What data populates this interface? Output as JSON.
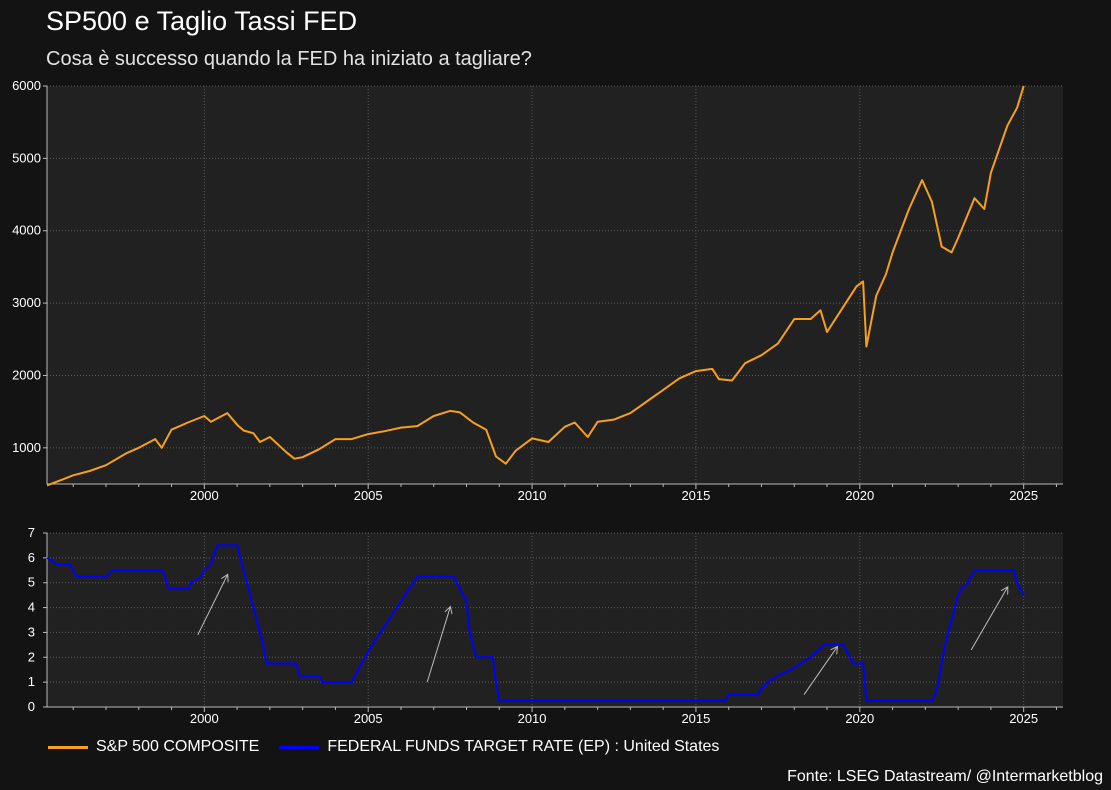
{
  "header": {
    "title": "SP500 e Taglio Tassi FED",
    "subtitle": "Cosa è successo quando la FED ha iniziato a tagliare?"
  },
  "footer": {
    "source": "Fonte: LSEG Datastream/ @Intermarketblog"
  },
  "colors": {
    "background": "#131313",
    "plot_background": "#212121",
    "grid": "#5a5a5a",
    "sp500": "#f7a01e",
    "fed": "#0000ff",
    "arrow": "#bdbdbd"
  },
  "chart_data": [
    {
      "type": "line",
      "x_type": "year",
      "xlim": [
        1995.2,
        2026.2
      ],
      "ylim": [
        500,
        6000
      ],
      "xticks": [
        2000,
        2005,
        2010,
        2015,
        2020,
        2025
      ],
      "yticks": [
        1000,
        2000,
        3000,
        4000,
        5000,
        6000
      ],
      "grid": true,
      "series": [
        {
          "name": "S&P 500 COMPOSITE",
          "color": "#f7a01e",
          "x": [
            1995.2,
            1995.6,
            1996.0,
            1996.5,
            1997.0,
            1997.6,
            1998.0,
            1998.5,
            1998.7,
            1999.0,
            1999.5,
            2000.0,
            2000.2,
            2000.7,
            2001.0,
            2001.2,
            2001.5,
            2001.7,
            2002.0,
            2002.5,
            2002.75,
            2003.0,
            2003.5,
            2004.0,
            2004.5,
            2005.0,
            2005.5,
            2006.0,
            2006.5,
            2007.0,
            2007.5,
            2007.8,
            2008.2,
            2008.6,
            2008.9,
            2009.2,
            2009.5,
            2010.0,
            2010.5,
            2011.0,
            2011.3,
            2011.7,
            2012.0,
            2012.5,
            2013.0,
            2013.5,
            2014.0,
            2014.5,
            2015.0,
            2015.5,
            2015.7,
            2016.1,
            2016.5,
            2017.0,
            2017.5,
            2018.0,
            2018.5,
            2018.8,
            2019.0,
            2019.5,
            2019.9,
            2020.1,
            2020.2,
            2020.5,
            2020.8,
            2021.0,
            2021.5,
            2021.9,
            2022.2,
            2022.5,
            2022.8,
            2023.0,
            2023.5,
            2023.8,
            2024.0,
            2024.5,
            2024.8,
            2025.0
          ],
          "values": [
            480,
            550,
            620,
            680,
            760,
            920,
            1000,
            1120,
            1000,
            1250,
            1350,
            1440,
            1360,
            1480,
            1320,
            1240,
            1200,
            1080,
            1150,
            940,
            850,
            870,
            980,
            1120,
            1120,
            1190,
            1230,
            1280,
            1300,
            1440,
            1510,
            1490,
            1350,
            1250,
            880,
            780,
            960,
            1130,
            1080,
            1290,
            1350,
            1150,
            1360,
            1390,
            1480,
            1640,
            1800,
            1960,
            2060,
            2090,
            1950,
            1930,
            2170,
            2280,
            2440,
            2780,
            2780,
            2900,
            2600,
            2950,
            3230,
            3300,
            2400,
            3100,
            3400,
            3700,
            4300,
            4700,
            4400,
            3780,
            3700,
            3900,
            4450,
            4300,
            4800,
            5450,
            5700,
            6000
          ]
        }
      ]
    },
    {
      "type": "line",
      "x_type": "year",
      "xlim": [
        1995.2,
        2026.2
      ],
      "ylim": [
        0,
        7
      ],
      "xticks": [
        2000,
        2005,
        2010,
        2015,
        2020,
        2025
      ],
      "yticks": [
        0,
        1,
        2,
        3,
        4,
        5,
        6,
        7
      ],
      "grid": true,
      "series": [
        {
          "name": "FEDERAL FUNDS TARGET RATE (EP) : United States",
          "color": "#0000ff",
          "x": [
            1995.2,
            1995.5,
            1995.9,
            1996.0,
            1996.1,
            1997.0,
            1997.2,
            1998.7,
            1998.8,
            1998.9,
            1999.5,
            1999.6,
            1999.9,
            2000.0,
            2000.2,
            2000.4,
            2001.0,
            2001.2,
            2001.3,
            2001.5,
            2001.7,
            2001.8,
            2001.9,
            2002.8,
            2002.9,
            2003.5,
            2003.6,
            2004.5,
            2004.6,
            2005.0,
            2005.5,
            2006.0,
            2006.5,
            2007.6,
            2007.8,
            2008.0,
            2008.1,
            2008.3,
            2008.8,
            2008.9,
            2009.0,
            2015.9,
            2016.0,
            2016.9,
            2017.0,
            2017.2,
            2017.5,
            2017.9,
            2018.2,
            2018.5,
            2018.7,
            2018.9,
            2019.5,
            2019.6,
            2019.8,
            2020.1,
            2020.2,
            2022.2,
            2022.3,
            2022.4,
            2022.5,
            2022.6,
            2022.75,
            2022.9,
            2023.0,
            2023.1,
            2023.3,
            2023.5,
            2024.7,
            2024.8,
            2024.9,
            2025.0
          ],
          "values": [
            6.0,
            5.75,
            5.75,
            5.5,
            5.25,
            5.25,
            5.5,
            5.5,
            5.25,
            4.75,
            4.75,
            5.0,
            5.25,
            5.5,
            5.75,
            6.5,
            6.5,
            5.5,
            5.0,
            4.0,
            3.0,
            2.5,
            1.75,
            1.75,
            1.25,
            1.25,
            1.0,
            1.0,
            1.25,
            2.25,
            3.25,
            4.25,
            5.25,
            5.25,
            4.75,
            4.25,
            3.0,
            2.0,
            2.0,
            1.0,
            0.25,
            0.25,
            0.5,
            0.5,
            0.75,
            1.0,
            1.25,
            1.5,
            1.75,
            2.0,
            2.25,
            2.5,
            2.5,
            2.25,
            1.75,
            1.75,
            0.25,
            0.25,
            0.5,
            1.0,
            1.75,
            2.5,
            3.25,
            4.0,
            4.5,
            4.75,
            5.0,
            5.5,
            5.5,
            5.0,
            4.75,
            4.5
          ]
        }
      ],
      "annotations": [
        {
          "type": "arrow",
          "from": [
            1999.8,
            2.9
          ],
          "to": [
            2000.7,
            5.3
          ]
        },
        {
          "type": "arrow",
          "from": [
            2006.8,
            1.0
          ],
          "to": [
            2007.5,
            4.0
          ]
        },
        {
          "type": "arrow",
          "from": [
            2018.3,
            0.5
          ],
          "to": [
            2019.3,
            2.4
          ]
        },
        {
          "type": "arrow",
          "from": [
            2023.4,
            2.3
          ],
          "to": [
            2024.5,
            4.8
          ]
        }
      ]
    }
  ]
}
